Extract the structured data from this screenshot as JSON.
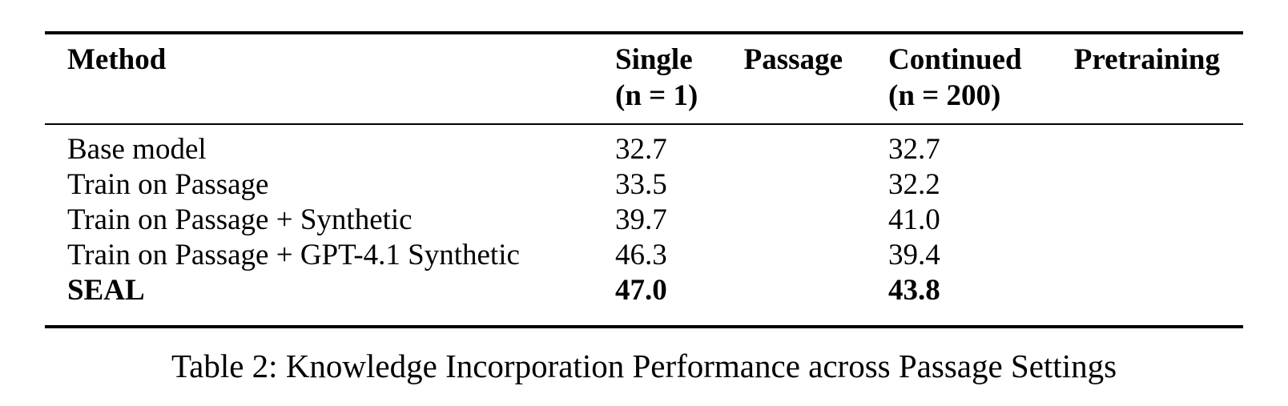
{
  "table": {
    "headers": {
      "method": "Method",
      "single_line1_word1": "Single",
      "single_line1_word2": "Passage",
      "single_line2": "(n = 1)",
      "cont_line1_word1": "Continued",
      "cont_line1_word2": "Pretraining",
      "cont_line2": "(n = 200)"
    },
    "rows": [
      {
        "method": "Base model",
        "single": "32.7",
        "continued": "32.7",
        "bold": false
      },
      {
        "method": "Train on Passage",
        "single": "33.5",
        "continued": "32.2",
        "bold": false
      },
      {
        "method": "Train on Passage + Synthetic",
        "single": "39.7",
        "continued": "41.0",
        "bold": false
      },
      {
        "method": "Train on Passage + GPT-4.1 Synthetic",
        "single": "46.3",
        "continued": "39.4",
        "bold": false
      },
      {
        "method": "SEAL",
        "single": "47.0",
        "continued": "43.8",
        "bold": true
      }
    ]
  },
  "caption": "Table 2: Knowledge Incorporation Performance across Passage Settings"
}
